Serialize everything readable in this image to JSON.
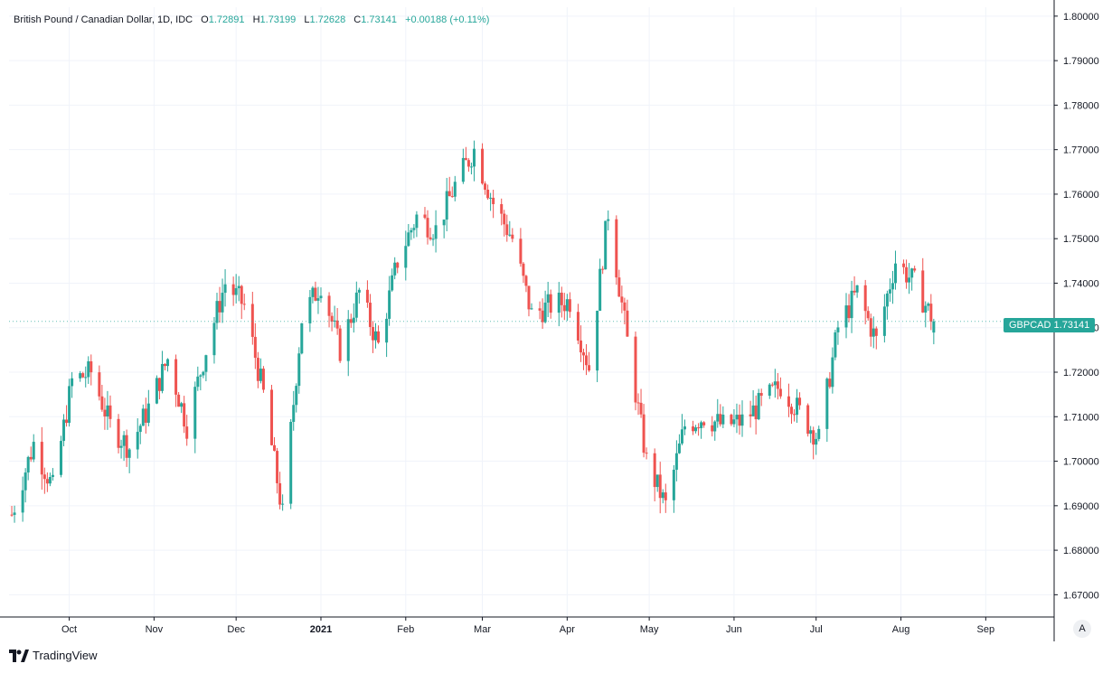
{
  "legend": {
    "symbol_desc": "British Pound / Canadian Dollar, 1D, IDC",
    "open_label": "O",
    "open": "1.72891",
    "high_label": "H",
    "high": "1.73199",
    "low_label": "L",
    "low": "1.72628",
    "close_label": "C",
    "close": "1.73141",
    "change": "+0.00188 (+0.11%)"
  },
  "price_tag": {
    "symbol": "GBPCAD",
    "price": "1.73141"
  },
  "auto_button": "A",
  "brand": "TradingView",
  "colors": {
    "up": "#26a69a",
    "down": "#ef5350",
    "grid": "#f0f3fa",
    "axis": "#131722"
  },
  "chart_data": {
    "type": "candlestick",
    "title": "British Pound / Canadian Dollar, 1D, IDC",
    "ylim": [
      1.665,
      1.802
    ],
    "yticks": [
      "1.67000",
      "1.68000",
      "1.69000",
      "1.70000",
      "1.71000",
      "1.72000",
      "1.73000",
      "1.74000",
      "1.75000",
      "1.76000",
      "1.77000",
      "1.78000",
      "1.79000",
      "1.80000"
    ],
    "xticks": [
      {
        "label": "Oct",
        "date": "2020-10-01"
      },
      {
        "label": "Nov",
        "date": "2020-11-01"
      },
      {
        "label": "Dec",
        "date": "2020-12-01"
      },
      {
        "label": "2021",
        "date": "2021-01-01",
        "bold": true
      },
      {
        "label": "Feb",
        "date": "2021-02-01"
      },
      {
        "label": "Mar",
        "date": "2021-03-01"
      },
      {
        "label": "Apr",
        "date": "2021-04-01"
      },
      {
        "label": "May",
        "date": "2021-05-01"
      },
      {
        "label": "Jun",
        "date": "2021-06-01"
      },
      {
        "label": "Jul",
        "date": "2021-07-01"
      },
      {
        "label": "Aug",
        "date": "2021-08-01"
      },
      {
        "label": "Sep",
        "date": "2021-09-01"
      }
    ],
    "xrange": [
      "2020-09-09",
      "2021-09-26"
    ],
    "closes": [
      [
        "2020-09-10",
        1.688
      ],
      [
        "2020-09-18",
        1.704
      ],
      [
        "2020-09-25",
        1.694
      ],
      [
        "2020-10-02",
        1.718
      ],
      [
        "2020-10-09",
        1.72
      ],
      [
        "2020-10-16",
        1.708
      ],
      [
        "2020-10-23",
        1.703
      ],
      [
        "2020-10-30",
        1.712
      ],
      [
        "2020-11-06",
        1.723
      ],
      [
        "2020-11-13",
        1.708
      ],
      [
        "2020-11-20",
        1.725
      ],
      [
        "2020-11-27",
        1.74
      ],
      [
        "2020-12-04",
        1.735
      ],
      [
        "2020-12-11",
        1.715
      ],
      [
        "2020-12-18",
        1.688
      ],
      [
        "2020-12-25",
        1.732
      ],
      [
        "2021-01-01",
        1.74
      ],
      [
        "2021-01-08",
        1.725
      ],
      [
        "2021-01-15",
        1.738
      ],
      [
        "2021-01-22",
        1.726
      ],
      [
        "2021-01-29",
        1.745
      ],
      [
        "2021-02-05",
        1.755
      ],
      [
        "2021-02-12",
        1.752
      ],
      [
        "2021-02-19",
        1.762
      ],
      [
        "2021-02-26",
        1.77
      ],
      [
        "2021-03-05",
        1.758
      ],
      [
        "2021-03-12",
        1.75
      ],
      [
        "2021-03-19",
        1.733
      ],
      [
        "2021-03-26",
        1.735
      ],
      [
        "2021-04-02",
        1.736
      ],
      [
        "2021-04-09",
        1.721
      ],
      [
        "2021-04-16",
        1.756
      ],
      [
        "2021-04-23",
        1.727
      ],
      [
        "2021-04-30",
        1.7
      ],
      [
        "2021-05-07",
        1.69
      ],
      [
        "2021-05-14",
        1.708
      ],
      [
        "2021-05-21",
        1.71
      ],
      [
        "2021-05-28",
        1.708
      ],
      [
        "2021-06-04",
        1.709
      ],
      [
        "2021-06-11",
        1.713
      ],
      [
        "2021-06-18",
        1.717
      ],
      [
        "2021-06-25",
        1.711
      ],
      [
        "2021-07-02",
        1.705
      ],
      [
        "2021-07-09",
        1.73
      ],
      [
        "2021-07-16",
        1.738
      ],
      [
        "2021-07-23",
        1.727
      ],
      [
        "2021-07-30",
        1.745
      ],
      [
        "2021-08-06",
        1.74
      ],
      [
        "2021-08-13",
        1.7314
      ]
    ]
  }
}
